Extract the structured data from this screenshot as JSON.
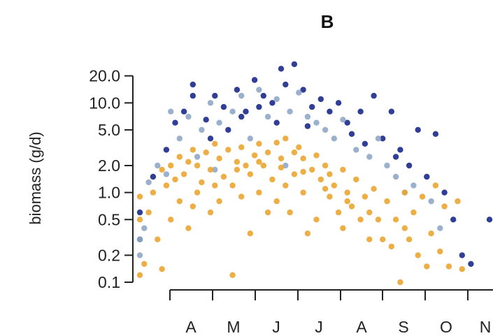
{
  "chart_data": {
    "type": "scatter",
    "title": "B",
    "xlabel": "",
    "ylabel": "biomass (g/d)",
    "y_scale": "log",
    "ylim": [
      0.1,
      30
    ],
    "xlim": [
      0.3,
      8.3
    ],
    "y_ticks": [
      0.1,
      0.2,
      0.5,
      1.0,
      2.0,
      5.0,
      10.0,
      20.0
    ],
    "y_tick_labels": [
      "0.1",
      "0.2",
      "0.5",
      "1.0",
      "2.0",
      "5.0",
      "10.0",
      "20.0"
    ],
    "x_ticks": [
      0.5,
      1.5,
      2.5,
      3.5,
      4.5,
      5.5,
      6.5,
      7.5
    ],
    "x_tick_labels": [
      "A",
      "M",
      "J",
      "J",
      "A",
      "S",
      "O",
      "N"
    ],
    "grid": false,
    "legend": "none",
    "series": [
      {
        "color": "#1a2a8a",
        "points": [
          [
            0.1,
            0.6
          ],
          [
            0.3,
            0.3
          ],
          [
            0.6,
            1.5
          ],
          [
            0.9,
            3.0
          ],
          [
            1.1,
            6.0
          ],
          [
            1.3,
            8.0
          ],
          [
            1.5,
            16.0
          ],
          [
            1.5,
            12.0
          ],
          [
            1.8,
            6.5
          ],
          [
            2.0,
            12.0
          ],
          [
            2.2,
            9.0
          ],
          [
            2.3,
            5.0
          ],
          [
            2.5,
            14.0
          ],
          [
            2.7,
            8.0
          ],
          [
            2.9,
            18.0
          ],
          [
            3.1,
            12.0
          ],
          [
            3.3,
            10.0
          ],
          [
            3.5,
            24.0
          ],
          [
            3.6,
            16.0
          ],
          [
            3.8,
            27.0
          ],
          [
            4.0,
            14.0
          ],
          [
            4.2,
            9.0
          ],
          [
            4.4,
            11.0
          ],
          [
            4.6,
            8.0
          ],
          [
            4.8,
            10.0
          ],
          [
            5.0,
            6.0
          ],
          [
            5.1,
            4.5
          ],
          [
            5.3,
            8.0
          ],
          [
            5.6,
            12.0
          ],
          [
            5.8,
            4.0
          ],
          [
            6.0,
            8.0
          ],
          [
            6.2,
            3.0
          ],
          [
            6.4,
            2.0
          ],
          [
            6.6,
            5.0
          ],
          [
            6.8,
            1.5
          ],
          [
            7.0,
            4.5
          ],
          [
            7.2,
            1.0
          ],
          [
            7.4,
            0.5
          ],
          [
            7.6,
            0.2
          ],
          [
            7.8,
            0.16
          ],
          [
            8.3,
            0.5
          ],
          [
            3.4,
            6.0
          ],
          [
            2.6,
            7.0
          ],
          [
            4.1,
            5.5
          ],
          [
            5.4,
            3.5
          ],
          [
            6.1,
            2.5
          ],
          [
            1.9,
            4.0
          ],
          [
            3.0,
            9.0
          ]
        ]
      },
      {
        "color": "#8fa7c7",
        "points": [
          [
            0.0,
            0.3
          ],
          [
            0.2,
            0.2
          ],
          [
            0.5,
            1.3
          ],
          [
            0.7,
            2.0
          ],
          [
            0.9,
            1.6
          ],
          [
            1.0,
            8.0
          ],
          [
            1.2,
            4.0
          ],
          [
            1.4,
            7.0
          ],
          [
            1.7,
            5.0
          ],
          [
            1.9,
            10.0
          ],
          [
            2.1,
            6.0
          ],
          [
            2.4,
            8.0
          ],
          [
            2.6,
            12.0
          ],
          [
            2.8,
            4.0
          ],
          [
            3.0,
            14.0
          ],
          [
            3.2,
            7.0
          ],
          [
            3.4,
            11.0
          ],
          [
            3.7,
            8.0
          ],
          [
            3.9,
            13.0
          ],
          [
            4.1,
            7.0
          ],
          [
            4.3,
            6.0
          ],
          [
            4.5,
            5.0
          ],
          [
            4.7,
            4.0
          ],
          [
            4.9,
            6.5
          ],
          [
            5.2,
            3.0
          ],
          [
            5.5,
            2.5
          ],
          [
            5.7,
            4.0
          ],
          [
            5.9,
            2.0
          ],
          [
            6.1,
            1.5
          ],
          [
            6.3,
            1.0
          ],
          [
            6.5,
            1.2
          ],
          [
            6.9,
            0.8
          ],
          [
            7.1,
            0.4
          ],
          [
            0.4,
            0.4
          ],
          [
            1.6,
            2.5
          ],
          [
            2.0,
            1.8
          ],
          [
            3.6,
            2.0
          ]
        ]
      },
      {
        "color": "#eaa531",
        "points": [
          [
            0.1,
            0.5
          ],
          [
            0.2,
            0.12
          ],
          [
            0.3,
            0.9
          ],
          [
            0.4,
            0.16
          ],
          [
            0.5,
            0.6
          ],
          [
            0.6,
            1.0
          ],
          [
            0.7,
            0.3
          ],
          [
            0.8,
            1.8
          ],
          [
            0.8,
            0.14
          ],
          [
            0.9,
            1.2
          ],
          [
            1.0,
            2.0
          ],
          [
            1.0,
            0.5
          ],
          [
            1.1,
            1.4
          ],
          [
            1.2,
            2.5
          ],
          [
            1.2,
            0.8
          ],
          [
            1.3,
            1.6
          ],
          [
            1.4,
            2.2
          ],
          [
            1.4,
            0.4
          ],
          [
            1.5,
            3.0
          ],
          [
            1.6,
            1.0
          ],
          [
            1.6,
            2.0
          ],
          [
            1.7,
            1.3
          ],
          [
            1.8,
            2.8
          ],
          [
            1.9,
            1.8
          ],
          [
            1.9,
            0.6
          ],
          [
            2.0,
            3.5
          ],
          [
            2.1,
            2.4
          ],
          [
            2.1,
            0.8
          ],
          [
            2.2,
            1.5
          ],
          [
            2.3,
            3.0
          ],
          [
            2.4,
            0.12
          ],
          [
            2.4,
            1.2
          ],
          [
            2.5,
            2.2
          ],
          [
            2.6,
            0.9
          ],
          [
            2.6,
            3.2
          ],
          [
            2.7,
            2.0
          ],
          [
            2.8,
            0.35
          ],
          [
            2.8,
            1.6
          ],
          [
            2.9,
            2.6
          ],
          [
            3.0,
            1.0
          ],
          [
            3.0,
            3.5
          ],
          [
            3.1,
            2.0
          ],
          [
            3.2,
            0.6
          ],
          [
            3.2,
            2.8
          ],
          [
            3.3,
            1.4
          ],
          [
            3.4,
            3.6
          ],
          [
            3.4,
            0.8
          ],
          [
            3.5,
            2.4
          ],
          [
            3.6,
            1.2
          ],
          [
            3.6,
            4.0
          ],
          [
            3.7,
            0.6
          ],
          [
            3.8,
            2.8
          ],
          [
            3.8,
            1.6
          ],
          [
            3.9,
            3.2
          ],
          [
            4.0,
            1.0
          ],
          [
            4.0,
            2.4
          ],
          [
            4.1,
            0.35
          ],
          [
            4.2,
            1.8
          ],
          [
            4.3,
            2.6
          ],
          [
            4.3,
            0.5
          ],
          [
            4.4,
            1.4
          ],
          [
            4.5,
            2.0
          ],
          [
            4.6,
            0.9
          ],
          [
            4.6,
            1.6
          ],
          [
            4.7,
            1.2
          ],
          [
            4.8,
            0.6
          ],
          [
            4.9,
            1.8
          ],
          [
            4.9,
            0.4
          ],
          [
            5.0,
            1.0
          ],
          [
            5.1,
            0.7
          ],
          [
            5.2,
            1.4
          ],
          [
            5.3,
            0.5
          ],
          [
            5.4,
            0.9
          ],
          [
            5.5,
            0.3
          ],
          [
            5.5,
            0.6
          ],
          [
            5.6,
            1.1
          ],
          [
            5.7,
            0.5
          ],
          [
            5.8,
            0.3
          ],
          [
            5.9,
            0.8
          ],
          [
            6.0,
            0.25
          ],
          [
            6.1,
            0.5
          ],
          [
            6.2,
            0.1
          ],
          [
            6.3,
            0.4
          ],
          [
            6.3,
            1.0
          ],
          [
            6.4,
            0.3
          ],
          [
            6.5,
            0.6
          ],
          [
            6.6,
            0.2
          ],
          [
            6.7,
            0.9
          ],
          [
            6.8,
            0.15
          ],
          [
            6.9,
            0.35
          ],
          [
            7.0,
            1.2
          ],
          [
            7.1,
            0.22
          ],
          [
            7.2,
            0.7
          ],
          [
            7.3,
            0.15
          ],
          [
            7.5,
            0.8
          ],
          [
            7.6,
            0.14
          ],
          [
            1.5,
            0.7
          ],
          [
            2.0,
            1.2
          ],
          [
            2.5,
            1.8
          ],
          [
            3.0,
            2.2
          ],
          [
            3.5,
            1.9
          ],
          [
            4.0,
            1.7
          ],
          [
            4.5,
            1.1
          ],
          [
            5.0,
            0.8
          ]
        ]
      }
    ]
  }
}
